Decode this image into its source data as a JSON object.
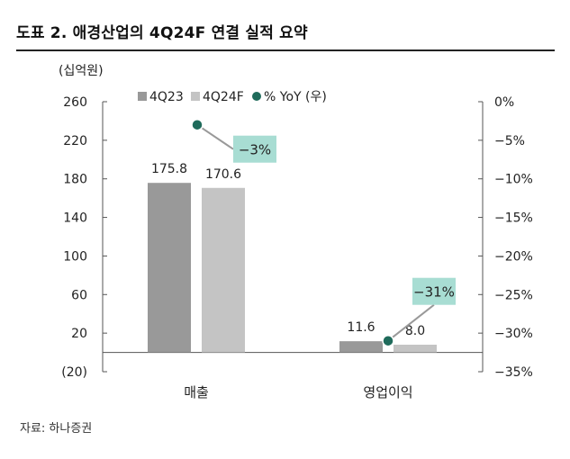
{
  "figure": {
    "title": "도표 2. 애경산업의 4Q24F 연결 실적 요약",
    "source": "자료: 하나증권"
  },
  "chart_data": {
    "type": "bar",
    "categories": [
      "매출",
      "영업이익"
    ],
    "series": [
      {
        "name": "4Q23",
        "type": "bar",
        "axis": "left",
        "color": "#999999",
        "values": [
          175.8,
          11.6
        ],
        "labels": [
          "175.8",
          "11.6"
        ]
      },
      {
        "name": "4Q24F",
        "type": "bar",
        "axis": "left",
        "color": "#c4c4c4",
        "values": [
          170.6,
          8.0
        ],
        "labels": [
          "170.6",
          "8.0"
        ]
      },
      {
        "name": "% YoY (우)",
        "type": "scatter",
        "axis": "right",
        "color": "#1f6b5b",
        "values": [
          -3,
          -31
        ],
        "labels": [
          "-3%",
          "-31%"
        ],
        "label_bg": "#a8ddd3"
      }
    ],
    "y_left": {
      "unit_label": "(십억원)",
      "range": [
        -20,
        260
      ],
      "ticks": [
        260,
        220,
        180,
        140,
        100,
        60,
        20,
        -20
      ],
      "tick_labels": [
        "260",
        "220",
        "180",
        "140",
        "100",
        "60",
        "20",
        "(20)"
      ]
    },
    "y_right": {
      "range": [
        -35,
        0
      ],
      "ticks": [
        0,
        -5,
        -10,
        -15,
        -20,
        -25,
        -30,
        -35
      ],
      "tick_labels": [
        "0%",
        "-5%",
        "-10%",
        "-15%",
        "-20%",
        "-25%",
        "-30%",
        "-35%"
      ]
    },
    "legend_position": "top-center",
    "grid": false
  }
}
